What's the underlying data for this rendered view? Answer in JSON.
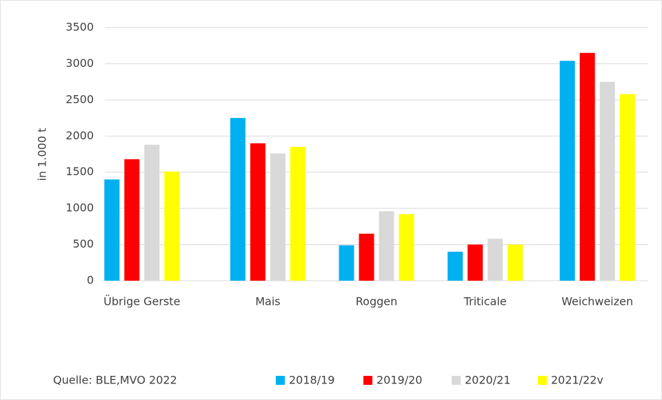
{
  "chart_data": {
    "type": "bar",
    "ylabel": "in 1.000 t",
    "source": "Quelle: BLE,MVO 2022",
    "categories": [
      "Übrige Gerste",
      "Mais",
      "Roggen",
      "Triticale",
      "Weichweizen"
    ],
    "series": [
      {
        "name": "2018/19",
        "color": "#00b0f0",
        "values": [
          1400,
          2250,
          490,
          400,
          3040
        ]
      },
      {
        "name": "2019/20",
        "color": "#ff0000",
        "values": [
          1680,
          1900,
          650,
          500,
          3150
        ]
      },
      {
        "name": "2020/21",
        "color": "#d9d9d9",
        "values": [
          1880,
          1760,
          960,
          580,
          2750
        ]
      },
      {
        "name": "2021/22v",
        "color": "#ffff00",
        "values": [
          1510,
          1850,
          920,
          500,
          2580
        ]
      }
    ],
    "ylim": [
      0,
      3500
    ],
    "yticks": [
      0,
      500,
      1000,
      1500,
      2000,
      2500,
      3000,
      3500
    ],
    "grid": true
  }
}
